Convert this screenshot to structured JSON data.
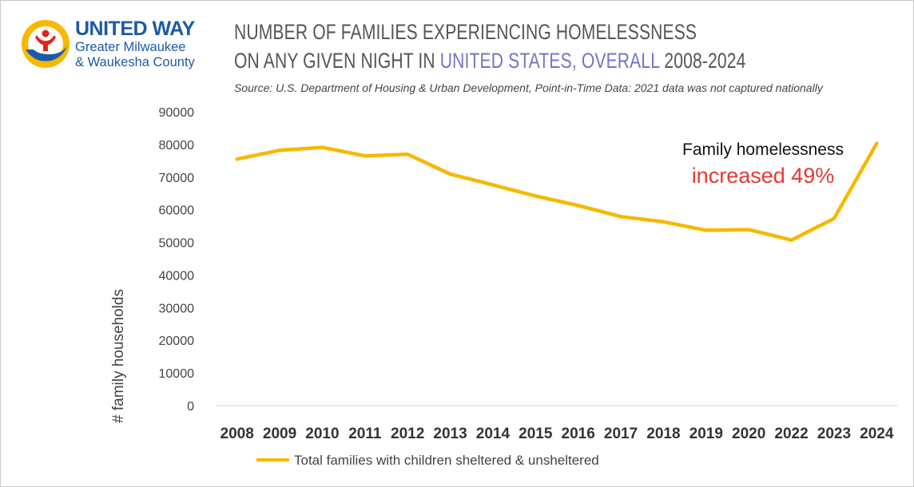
{
  "brand": {
    "name": "UNITED WAY",
    "subtitle_line1": "Greater Milwaukee",
    "subtitle_line2": "& Waukesha County",
    "colors": {
      "blue": "#1c5aa6",
      "yellow": "#f6b800",
      "red": "#e2231a"
    }
  },
  "header": {
    "title_line1": "NUMBER OF FAMILIES EXPERIENCING HOMELESSNESS",
    "title_line2_prefix": "ON ANY GIVEN NIGHT IN ",
    "title_line2_highlight": "UNITED STATES, OVERALL",
    "title_line2_suffix": " 2008-2024",
    "highlight_color": "#7473c4",
    "source": "Source: U.S. Department of Housing & Urban Development, Point-in-Time Data: 2021 data was not captured nationally"
  },
  "chart_data": {
    "type": "line",
    "title": "NUMBER OF FAMILIES EXPERIENCING HOMELESSNESS ON ANY GIVEN NIGHT IN UNITED STATES, OVERALL 2008-2024",
    "xlabel": "",
    "ylabel": "# family households",
    "categories": [
      "2008",
      "2009",
      "2010",
      "2011",
      "2012",
      "2013",
      "2014",
      "2015",
      "2016",
      "2017",
      "2018",
      "2019",
      "2020",
      "2022",
      "2023",
      "2024"
    ],
    "series": [
      {
        "name": "Total families with children sheltered & unsheltered",
        "color": "#f6b800",
        "values": [
          75500,
          78200,
          79100,
          76500,
          77000,
          70900,
          67600,
          64200,
          61300,
          57900,
          56300,
          53700,
          53900,
          50700,
          57300,
          80300
        ]
      }
    ],
    "ylim": [
      0,
      90000
    ],
    "yticks": [
      0,
      10000,
      20000,
      30000,
      40000,
      50000,
      60000,
      70000,
      80000,
      90000
    ],
    "grid": false,
    "legend": "bottom",
    "annotation": {
      "line1": "Family homelessness",
      "line2": "increased 49%"
    }
  }
}
